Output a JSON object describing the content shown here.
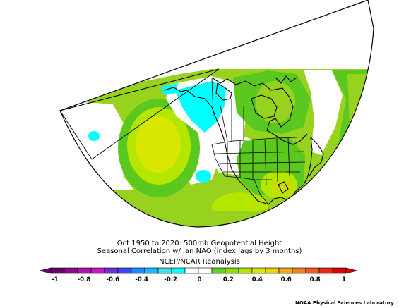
{
  "title": {
    "line1": "Oct 1950 to 2020: 500mb Geopotential Height",
    "line2": "Seasonal Correlation w/ Jan NAO (index lags by 3 months)",
    "line3": "NCEP/NCAR Reanalysis"
  },
  "colorbar": {
    "ticks": [
      "-1",
      "-0.8",
      "-0.6",
      "-0.4",
      "-0.2",
      "0",
      "0.2",
      "0.4",
      "0.6",
      "0.8",
      "1"
    ],
    "colors": [
      "#6a006a",
      "#8a0a8a",
      "#b012b0",
      "#c418c4",
      "#6a30d8",
      "#3d48ff",
      "#1a8cff",
      "#1ab8ff",
      "#3ee0e8",
      "#00ffff",
      "#ffffff",
      "#ffffff",
      "#5ad21e",
      "#8cdc00",
      "#b4e600",
      "#d8e600",
      "#ecd20a",
      "#f0aa12",
      "#f0821e",
      "#f05a1e",
      "#eb2814",
      "#e00000"
    ]
  },
  "credit": "NOAA Physical Sciences Laboratory",
  "colors": {
    "light_green": "#96d21e",
    "green": "#5ac81e",
    "yellow_green": "#c8dc00",
    "cyan": "#00ffff",
    "light_blue": "#64dcff",
    "coast": "#000000"
  }
}
